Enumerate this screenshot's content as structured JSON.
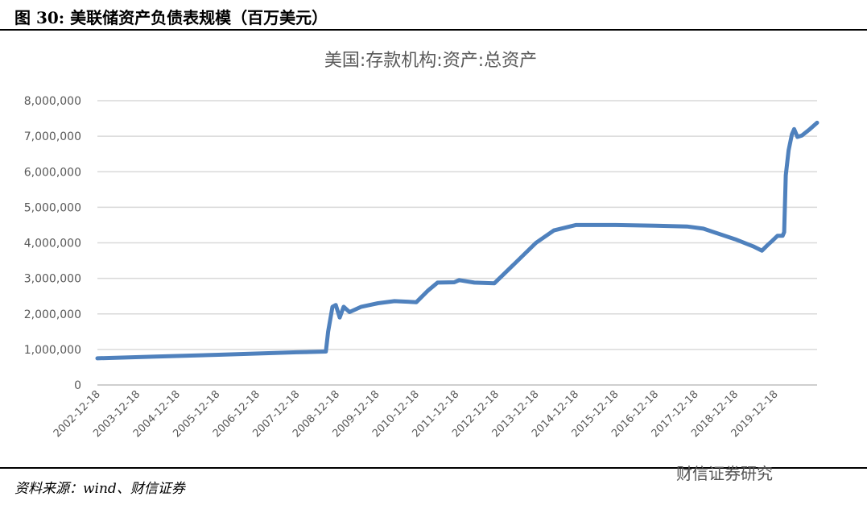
{
  "figure_title": "图 30:  美联储资产负债表规模（百万美元）",
  "source": "资料来源：wind、财信证券",
  "watermark": "财信证券研究",
  "chart_data": {
    "type": "line",
    "title": "美国:存款机构:资产:总资产",
    "xlabel": "",
    "ylabel": "",
    "ylim": [
      0,
      8000000
    ],
    "yticks": [
      0,
      1000000,
      2000000,
      3000000,
      4000000,
      5000000,
      6000000,
      7000000,
      8000000
    ],
    "ytick_labels": [
      "0",
      "1,000,000",
      "2,000,000",
      "3,000,000",
      "4,000,000",
      "5,000,000",
      "6,000,000",
      "7,000,000",
      "8,000,000"
    ],
    "xtick_labels": [
      "2002-12-18",
      "2003-12-18",
      "2004-12-18",
      "2005-12-18",
      "2006-12-18",
      "2007-12-18",
      "2008-12-18",
      "2009-12-18",
      "2010-12-18",
      "2011-12-18",
      "2012-12-18",
      "2013-12-18",
      "2014-12-18",
      "2015-12-18",
      "2016-12-18",
      "2017-12-18",
      "2018-12-18",
      "2019-12-18"
    ],
    "xlim": [
      "2002-12-18",
      "2021-01-06"
    ],
    "grid": "horizontal",
    "color": "#4f81bd",
    "series": [
      {
        "x": [
          "2002-12-18",
          "2004-06-01",
          "2006-01-01",
          "2007-12-18",
          "2008-09-10",
          "2008-10-01",
          "2008-11-10",
          "2008-12-10",
          "2009-01-15",
          "2009-02-20",
          "2009-04-15",
          "2009-08-01",
          "2010-01-01",
          "2010-06-01",
          "2010-12-18",
          "2011-04-01",
          "2011-06-30",
          "2011-12-01",
          "2012-01-15",
          "2012-06-01",
          "2012-12-01",
          "2013-06-01",
          "2013-12-18",
          "2014-06-01",
          "2014-12-18",
          "2015-12-18",
          "2016-12-18",
          "2017-10-01",
          "2018-03-01",
          "2018-12-18",
          "2019-06-01",
          "2019-08-20",
          "2019-10-15",
          "2019-11-20",
          "2020-01-10",
          "2020-02-25",
          "2020-03-10",
          "2020-03-25",
          "2020-04-20",
          "2020-05-20",
          "2020-06-10",
          "2020-07-10",
          "2020-08-20",
          "2020-11-01",
          "2021-01-06"
        ],
        "y": [
          750000,
          800000,
          850000,
          920000,
          940000,
          1500000,
          2200000,
          2250000,
          1900000,
          2200000,
          2050000,
          2200000,
          2300000,
          2360000,
          2330000,
          2650000,
          2880000,
          2890000,
          2950000,
          2880000,
          2860000,
          3400000,
          4000000,
          4350000,
          4500000,
          4500000,
          4480000,
          4460000,
          4400000,
          4100000,
          3900000,
          3780000,
          3950000,
          4050000,
          4200000,
          4200000,
          4300000,
          5900000,
          6600000,
          7050000,
          7200000,
          6980000,
          7020000,
          7200000,
          7380000
        ]
      }
    ]
  }
}
